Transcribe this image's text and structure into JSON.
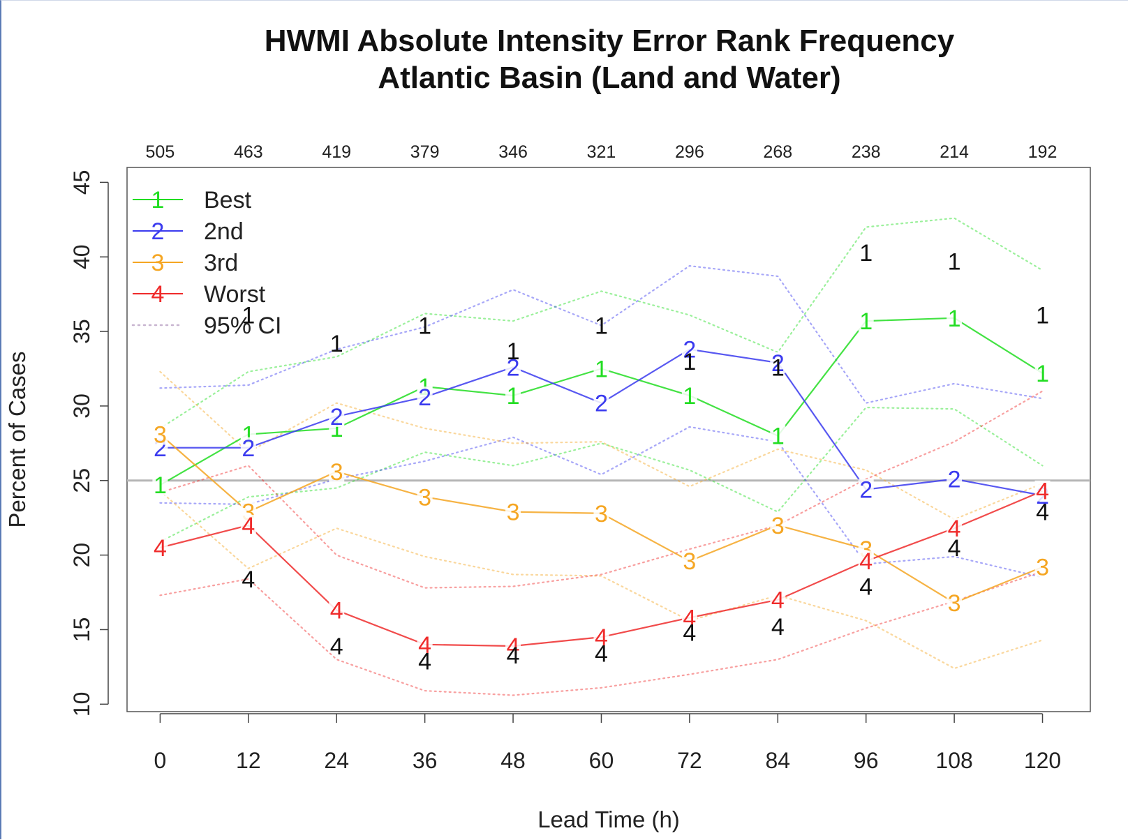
{
  "chart_data": {
    "type": "line",
    "title_line1": "HWMI Absolute Intensity Error Rank Frequency",
    "title_line2": "Atlantic Basin (Land and Water)",
    "xlabel": "Lead Time (h)",
    "ylabel": "Percent of Cases",
    "x": [
      0,
      12,
      24,
      36,
      48,
      60,
      72,
      84,
      96,
      108,
      120
    ],
    "x_tick_labels": [
      "0",
      "12",
      "24",
      "36",
      "48",
      "60",
      "72",
      "84",
      "96",
      "108",
      "120"
    ],
    "top_counts": [
      "505",
      "463",
      "419",
      "379",
      "346",
      "321",
      "296",
      "268",
      "238",
      "214",
      "192"
    ],
    "y_ticks": [
      "10",
      "15",
      "20",
      "25",
      "30",
      "35",
      "40",
      "45"
    ],
    "y_tick_values": [
      10,
      15,
      20,
      25,
      30,
      35,
      40,
      45
    ],
    "ylim": [
      9.5,
      46
    ],
    "xlim": [
      -4.5,
      126.5
    ],
    "reference_line": 25,
    "legend_position": "top-left",
    "series": [
      {
        "name": "Best",
        "marker": "1",
        "color": "#22dd22",
        "values": [
          24.7,
          28.1,
          28.5,
          31.3,
          30.7,
          32.5,
          30.7,
          28.0,
          35.7,
          35.9,
          32.2
        ],
        "ci_upper": [
          28.5,
          32.3,
          33.3,
          36.2,
          35.7,
          37.7,
          36.1,
          33.6,
          42.0,
          42.6,
          39.1
        ],
        "ci_lower": [
          20.9,
          23.9,
          24.5,
          26.9,
          26.0,
          27.5,
          25.7,
          22.9,
          29.9,
          29.8,
          26.0
        ]
      },
      {
        "name": "2nd",
        "marker": "2",
        "color": "#3b3bef",
        "values": [
          27.2,
          27.2,
          29.3,
          30.6,
          32.6,
          30.2,
          33.8,
          32.9,
          24.4,
          25.1,
          24.0
        ],
        "ci_upper": [
          31.2,
          31.4,
          33.8,
          35.3,
          37.8,
          35.4,
          39.4,
          38.7,
          30.2,
          31.5,
          30.5
        ],
        "ci_lower": [
          23.5,
          23.4,
          25.1,
          26.3,
          27.9,
          25.4,
          28.6,
          27.6,
          19.4,
          19.9,
          18.5
        ]
      },
      {
        "name": "3rd",
        "marker": "3",
        "color": "#f5a623",
        "values": [
          28.1,
          22.9,
          25.6,
          23.9,
          22.9,
          22.8,
          19.6,
          22.0,
          20.4,
          16.8,
          19.2
        ],
        "ci_upper": [
          32.3,
          26.9,
          30.2,
          28.5,
          27.5,
          27.6,
          24.6,
          27.1,
          25.7,
          22.4,
          24.8
        ],
        "ci_lower": [
          24.3,
          19.1,
          21.8,
          19.9,
          18.7,
          18.6,
          15.6,
          17.3,
          15.6,
          12.4,
          14.3
        ]
      },
      {
        "name": "Worst",
        "marker": "4",
        "color": "#ef2b2b",
        "values": [
          20.5,
          22.0,
          16.3,
          14.0,
          13.9,
          14.5,
          15.8,
          17.0,
          19.6,
          21.8,
          24.3
        ],
        "ci_upper": [
          24.2,
          26.0,
          20.0,
          17.8,
          17.9,
          18.7,
          20.4,
          22.0,
          25.1,
          27.6,
          31.0
        ],
        "ci_lower": [
          17.3,
          18.4,
          13.0,
          10.9,
          10.6,
          11.1,
          12.0,
          13.0,
          15.1,
          16.9,
          18.9
        ]
      }
    ],
    "significance_markers": {
      "color": "#111111",
      "best_labels": [
        {
          "x": 12,
          "y": 36.1,
          "text": "1"
        },
        {
          "x": 24,
          "y": 34.2,
          "text": "1"
        },
        {
          "x": 36,
          "y": 35.4,
          "text": "1"
        },
        {
          "x": 48,
          "y": 33.7,
          "text": "1"
        },
        {
          "x": 60,
          "y": 35.4,
          "text": "1"
        },
        {
          "x": 72,
          "y": 33.0,
          "text": "1"
        },
        {
          "x": 84,
          "y": 32.6,
          "text": "1"
        },
        {
          "x": 96,
          "y": 40.3,
          "text": "1"
        },
        {
          "x": 108,
          "y": 39.7,
          "text": "1"
        },
        {
          "x": 120,
          "y": 36.1,
          "text": "1"
        }
      ],
      "worst_labels": [
        {
          "x": 12,
          "y": 18.4,
          "text": "4"
        },
        {
          "x": 24,
          "y": 13.9,
          "text": "4"
        },
        {
          "x": 36,
          "y": 12.9,
          "text": "4"
        },
        {
          "x": 48,
          "y": 13.3,
          "text": "4"
        },
        {
          "x": 60,
          "y": 13.4,
          "text": "4"
        },
        {
          "x": 72,
          "y": 14.8,
          "text": "4"
        },
        {
          "x": 84,
          "y": 15.2,
          "text": "4"
        },
        {
          "x": 96,
          "y": 17.9,
          "text": "4"
        },
        {
          "x": 108,
          "y": 20.5,
          "text": "4"
        },
        {
          "x": 120,
          "y": 22.9,
          "text": "4"
        }
      ]
    },
    "legend": [
      {
        "label": "Best",
        "marker": "1",
        "color": "#22dd22",
        "style": "solid"
      },
      {
        "label": "2nd",
        "marker": "2",
        "color": "#3b3bef",
        "style": "solid"
      },
      {
        "label": "3rd",
        "marker": "3",
        "color": "#f5a623",
        "style": "solid"
      },
      {
        "label": "Worst",
        "marker": "4",
        "color": "#ef2b2b",
        "style": "solid"
      },
      {
        "label": "95% CI",
        "marker": "",
        "color": "#c8b4d0",
        "style": "dotted"
      }
    ]
  }
}
